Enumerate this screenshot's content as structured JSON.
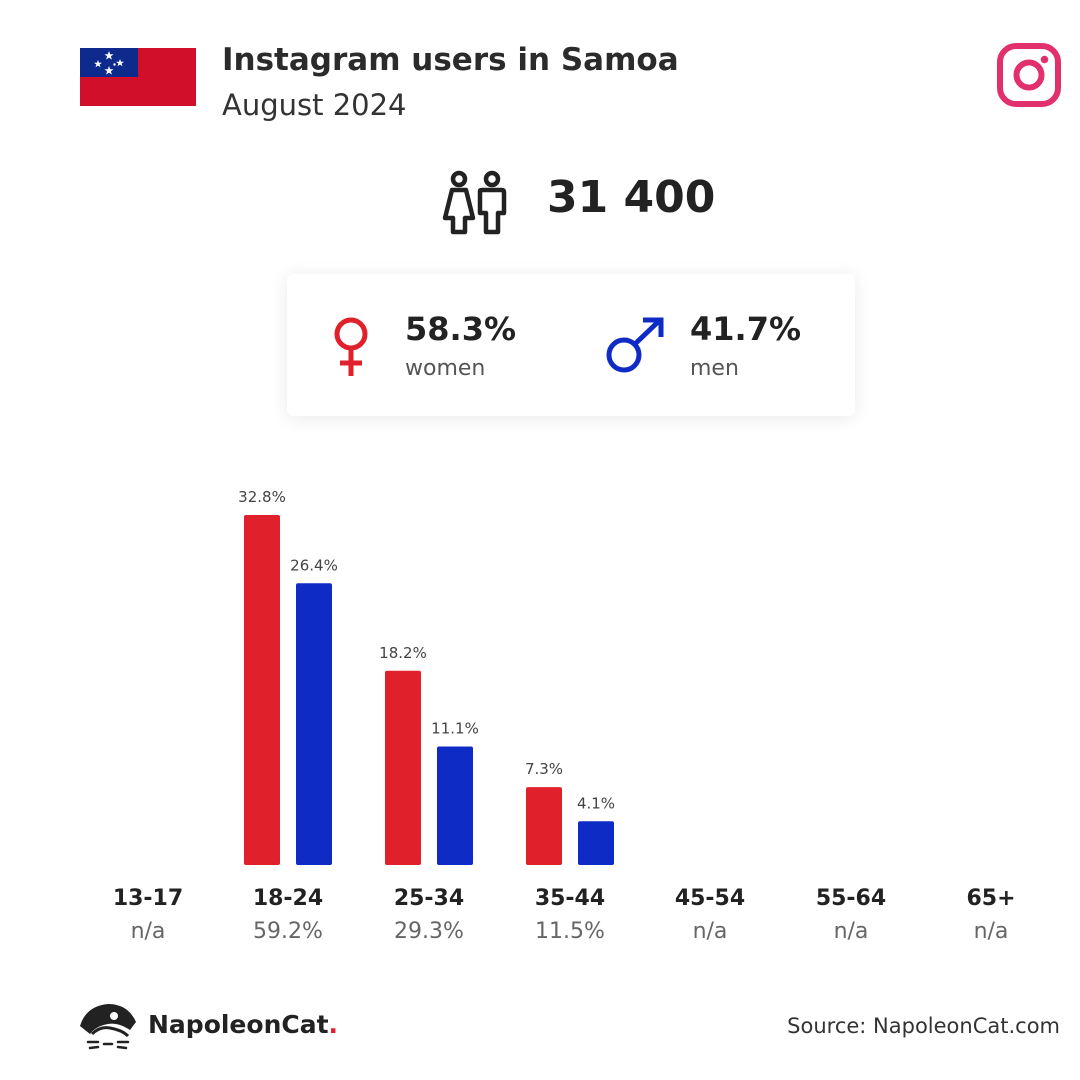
{
  "header": {
    "title": "Instagram users in Samoa",
    "subtitle": "August 2024",
    "flag_icon": "samoa-flag",
    "app_icon": "instagram-icon"
  },
  "total": {
    "value": "31 400",
    "icon": "people-icon"
  },
  "gender": {
    "women": {
      "pct": "58.3%",
      "label": "women",
      "icon": "female-symbol-icon",
      "color": "#e0202a"
    },
    "men": {
      "pct": "41.7%",
      "label": "men",
      "icon": "male-symbol-icon",
      "color": "#0f2bc6"
    }
  },
  "chart_data": {
    "type": "bar",
    "categories": [
      "13-17",
      "18-24",
      "25-34",
      "35-44",
      "45-54",
      "55-64",
      "65+"
    ],
    "category_totals": [
      "n/a",
      "59.2%",
      "29.3%",
      "11.5%",
      "n/a",
      "n/a",
      "n/a"
    ],
    "series": [
      {
        "name": "women",
        "color": "#e0202a",
        "values": [
          null,
          32.8,
          18.2,
          7.3,
          null,
          null,
          null
        ]
      },
      {
        "name": "men",
        "color": "#0f2bc6",
        "values": [
          null,
          26.4,
          11.1,
          4.1,
          null,
          null,
          null
        ]
      }
    ],
    "value_suffix": "%",
    "ylim": [
      0,
      32.8
    ],
    "grid": false,
    "legend": "none"
  },
  "footer": {
    "brand_name": "NapoleonCat",
    "brand_dot": ".",
    "brand_icon": "napoleoncat-logo",
    "source": "Source: NapoleonCat.com"
  }
}
